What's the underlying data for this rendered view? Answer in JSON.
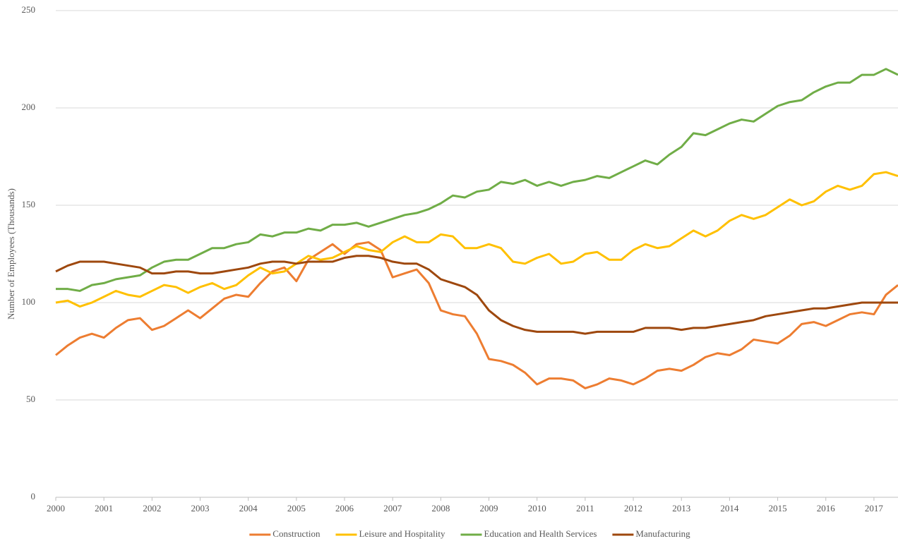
{
  "chart_data": {
    "type": "line",
    "y_label": "Number of Employees (Thousands)",
    "x": [
      2000,
      2000.25,
      2000.5,
      2000.75,
      2001,
      2001.25,
      2001.5,
      2001.75,
      2002,
      2002.25,
      2002.5,
      2002.75,
      2003,
      2003.25,
      2003.5,
      2003.75,
      2004,
      2004.25,
      2004.5,
      2004.75,
      2005,
      2005.25,
      2005.5,
      2005.75,
      2006,
      2006.25,
      2006.5,
      2006.75,
      2007,
      2007.25,
      2007.5,
      2007.75,
      2008,
      2008.25,
      2008.5,
      2008.75,
      2009,
      2009.25,
      2009.5,
      2009.75,
      2010,
      2010.25,
      2010.5,
      2010.75,
      2011,
      2011.25,
      2011.5,
      2011.75,
      2012,
      2012.25,
      2012.5,
      2012.75,
      2013,
      2013.25,
      2013.5,
      2013.75,
      2014,
      2014.25,
      2014.5,
      2014.75,
      2015,
      2015.25,
      2015.5,
      2015.75,
      2016,
      2016.25,
      2016.5,
      2016.75,
      2017,
      2017.25,
      2017.5
    ],
    "series": [
      {
        "name": "Construction",
        "color": "#ed7d31",
        "values": [
          73,
          78,
          82,
          84,
          82,
          87,
          91,
          92,
          86,
          88,
          92,
          96,
          92,
          97,
          102,
          104,
          103,
          110,
          116,
          118,
          111,
          122,
          126,
          130,
          125,
          130,
          131,
          127,
          113,
          115,
          117,
          110,
          96,
          94,
          93,
          84,
          71,
          70,
          68,
          64,
          58,
          61,
          61,
          60,
          56,
          58,
          61,
          60,
          58,
          61,
          65,
          66,
          65,
          68,
          72,
          74,
          73,
          76,
          81,
          80,
          79,
          83,
          89,
          90,
          88,
          91,
          94,
          95,
          94,
          104,
          109
        ]
      },
      {
        "name": "Leisure and Hospitality",
        "color": "#ffc000",
        "values": [
          100,
          101,
          98,
          100,
          103,
          106,
          104,
          103,
          106,
          109,
          108,
          105,
          108,
          110,
          107,
          109,
          114,
          118,
          115,
          116,
          120,
          124,
          122,
          123,
          126,
          129,
          127,
          126,
          131,
          134,
          131,
          131,
          135,
          134,
          128,
          128,
          130,
          128,
          121,
          120,
          123,
          125,
          120,
          121,
          125,
          126,
          122,
          122,
          127,
          130,
          128,
          129,
          133,
          137,
          134,
          137,
          142,
          145,
          143,
          145,
          149,
          153,
          150,
          152,
          157,
          160,
          158,
          160,
          166,
          167,
          165
        ]
      },
      {
        "name": "Education and Health Services",
        "color": "#70ad47",
        "values": [
          107,
          107,
          106,
          109,
          110,
          112,
          113,
          114,
          118,
          121,
          122,
          122,
          125,
          128,
          128,
          130,
          131,
          135,
          134,
          136,
          136,
          138,
          137,
          140,
          140,
          141,
          139,
          141,
          143,
          145,
          146,
          148,
          151,
          155,
          154,
          157,
          158,
          162,
          161,
          163,
          160,
          162,
          160,
          162,
          163,
          165,
          164,
          167,
          170,
          173,
          171,
          176,
          180,
          187,
          186,
          189,
          192,
          194,
          193,
          197,
          201,
          203,
          204,
          208,
          211,
          213,
          213,
          217,
          217,
          220,
          217
        ]
      },
      {
        "name": "Manufacturing",
        "color": "#9e480e",
        "values": [
          116,
          119,
          121,
          121,
          121,
          120,
          119,
          118,
          115,
          115,
          116,
          116,
          115,
          115,
          116,
          117,
          118,
          120,
          121,
          121,
          120,
          121,
          121,
          121,
          123,
          124,
          124,
          123,
          121,
          120,
          120,
          117,
          112,
          110,
          108,
          104,
          96,
          91,
          88,
          86,
          85,
          85,
          85,
          85,
          84,
          85,
          85,
          85,
          85,
          87,
          87,
          87,
          86,
          87,
          87,
          88,
          89,
          90,
          91,
          93,
          94,
          95,
          96,
          97,
          97,
          98,
          99,
          100,
          100,
          100,
          100
        ]
      }
    ],
    "xlim": [
      2000,
      2017.5
    ],
    "ylim": [
      0,
      250
    ],
    "xticks": [
      2000,
      2001,
      2002,
      2003,
      2004,
      2005,
      2006,
      2007,
      2008,
      2009,
      2010,
      2011,
      2012,
      2013,
      2014,
      2015,
      2016,
      2017
    ],
    "yticks": [
      0,
      50,
      100,
      150,
      200,
      250
    ],
    "grid": true,
    "legend": "bottom"
  }
}
